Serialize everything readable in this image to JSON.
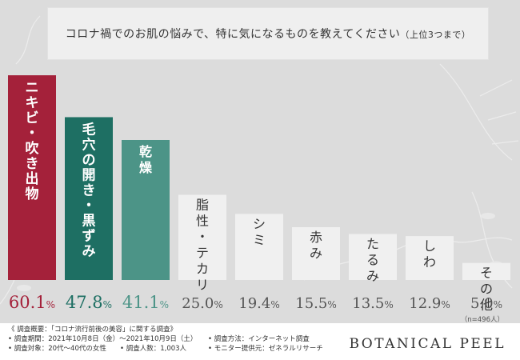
{
  "title_main": "コロナ禍でのお肌の悩みで、特に気になるものを教えてください",
  "title_note": "（上位3つまで）",
  "chart_data": {
    "type": "bar",
    "categories": [
      "ニキビ・吹き出物",
      "毛穴の開き・黒ずみ",
      "乾燥",
      "脂性・テカリ",
      "シミ",
      "赤み",
      "たるみ",
      "しわ",
      "その他"
    ],
    "values": [
      60.1,
      47.8,
      41.1,
      25.0,
      19.4,
      15.5,
      13.5,
      12.9,
      5.0
    ],
    "value_labels": [
      "60.1",
      "47.8",
      "41.1",
      "25.0",
      "19.4",
      "15.5",
      "13.5",
      "12.9",
      "5.0"
    ],
    "unit": "%",
    "colors": [
      "#a4213a",
      "#1e6f63",
      "#4c9487",
      "#f0f0f0",
      "#f0f0f0",
      "#f0f0f0",
      "#f0f0f0",
      "#f0f0f0",
      "#f0f0f0"
    ],
    "label_colors": [
      "#ffffff",
      "#ffffff",
      "#ffffff",
      "#333333",
      "#333333",
      "#333333",
      "#333333",
      "#333333",
      "#333333"
    ],
    "value_colors": [
      "#a4213a",
      "#1e6f63",
      "#4c9487",
      "#555555",
      "#555555",
      "#555555",
      "#555555",
      "#555555",
      "#555555"
    ],
    "ylim": [
      0,
      62
    ]
  },
  "sample_size": "（n=496人）",
  "notes": {
    "heading": "《 調査概要：「コロナ流行前後の美容」に関する調査》",
    "period": "• 調査期間：2021年10月8日（金）〜2021年10月9日（土）",
    "method": "• 調査方法：インターネット調査",
    "target": "• 調査対象：20代〜40代の女性",
    "count": "• 調査人数：1,003人",
    "provider": "• モニター提供元：ゼネラルリサーチ"
  },
  "brand": "BOTANICAL PEEL"
}
